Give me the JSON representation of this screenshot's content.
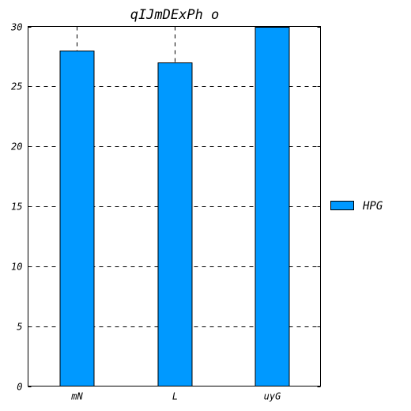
{
  "chart_data": {
    "type": "bar",
    "title": "qIJmDExPh o",
    "categories": [
      "mN",
      "L",
      "uyG"
    ],
    "series": [
      {
        "name": "HPG",
        "values": [
          28,
          27,
          30
        ],
        "color": "#0099ff"
      }
    ],
    "ylim": [
      0,
      30
    ],
    "yticks": [
      0,
      5,
      10,
      15,
      20,
      25,
      30
    ],
    "grid": true,
    "grid_style": "dashed",
    "legend_position": "right"
  }
}
